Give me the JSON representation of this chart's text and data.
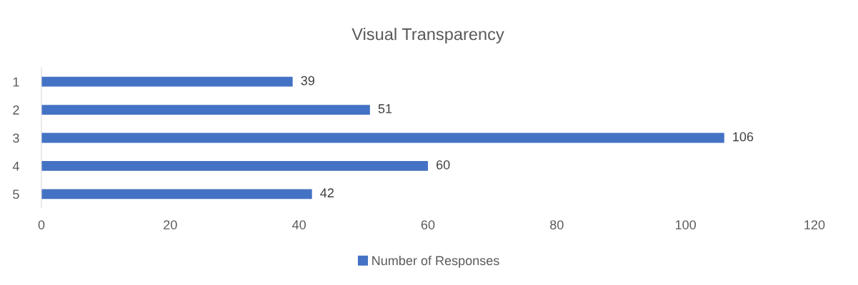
{
  "chart_data": {
    "type": "bar",
    "orientation": "horizontal",
    "title": "Visual Transparency",
    "categories": [
      "1",
      "2",
      "3",
      "4",
      "5"
    ],
    "series": [
      {
        "name": "Number of Responses",
        "color": "#4472c4",
        "values": [
          39,
          51,
          106,
          60,
          42
        ]
      }
    ],
    "xlim": [
      0,
      120
    ],
    "xticks": [
      0,
      20,
      40,
      60,
      80,
      100,
      120
    ],
    "data_labels": true,
    "legend": "bottom",
    "grid": false
  }
}
